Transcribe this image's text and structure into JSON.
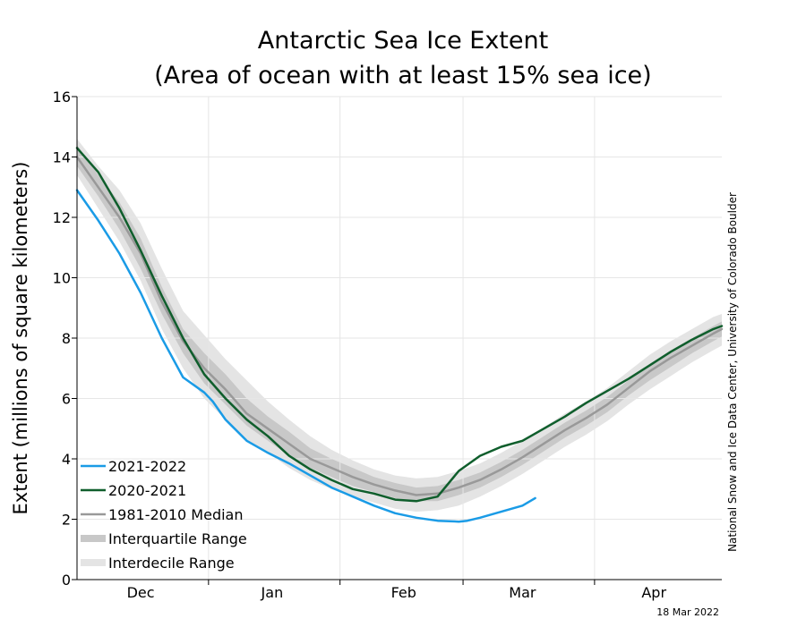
{
  "chart_data": {
    "type": "line",
    "title": "Antarctic Sea Ice Extent",
    "subtitle": "(Area of ocean with at least 15% sea ice)",
    "xlabel": "",
    "ylabel": "Extent (millions of square kilometers)",
    "xlim": [
      0,
      152
    ],
    "ylim": [
      0,
      16
    ],
    "yticks": [
      0,
      2,
      4,
      6,
      8,
      10,
      12,
      14,
      16
    ],
    "xticks": [
      {
        "label": "Dec",
        "pos": 15
      },
      {
        "label": "Jan",
        "pos": 46
      },
      {
        "label": "Feb",
        "pos": 77
      },
      {
        "label": "Mar",
        "pos": 105
      },
      {
        "label": "Apr",
        "pos": 136
      }
    ],
    "month_boundaries": [
      31,
      62,
      91,
      122
    ],
    "grid": true,
    "x_unit": "days since Nov 1",
    "series": [
      {
        "name": "2021-2022",
        "color": "#1a9be6",
        "x": [
          0,
          5,
          10,
          15,
          20,
          25,
          30,
          32,
          35,
          40,
          45,
          50,
          55,
          60,
          65,
          70,
          75,
          80,
          85,
          90,
          92,
          95,
          100,
          105,
          108
        ],
        "values": [
          12.9,
          11.9,
          10.8,
          9.5,
          8.0,
          6.7,
          6.2,
          5.9,
          5.3,
          4.6,
          4.2,
          3.85,
          3.45,
          3.05,
          2.75,
          2.45,
          2.2,
          2.05,
          1.95,
          1.92,
          1.95,
          2.05,
          2.25,
          2.45,
          2.7
        ]
      },
      {
        "name": "2020-2021",
        "color": "#0f5e2c",
        "x": [
          0,
          5,
          10,
          15,
          20,
          25,
          30,
          35,
          40,
          45,
          50,
          55,
          60,
          65,
          70,
          75,
          80,
          85,
          90,
          95,
          100,
          105,
          110,
          115,
          120,
          125,
          130,
          135,
          140,
          145,
          150,
          152
        ],
        "values": [
          14.3,
          13.5,
          12.3,
          10.9,
          9.4,
          8.0,
          6.8,
          6.0,
          5.3,
          4.75,
          4.1,
          3.65,
          3.3,
          3.0,
          2.85,
          2.65,
          2.6,
          2.75,
          3.6,
          4.1,
          4.4,
          4.6,
          5.0,
          5.4,
          5.85,
          6.25,
          6.65,
          7.1,
          7.55,
          7.95,
          8.3,
          8.4
        ]
      },
      {
        "name": "1981-2010 Median",
        "color": "#999999",
        "x": [
          0,
          5,
          10,
          15,
          20,
          25,
          30,
          35,
          40,
          45,
          50,
          55,
          60,
          65,
          70,
          75,
          80,
          85,
          90,
          95,
          100,
          105,
          110,
          115,
          120,
          125,
          130,
          135,
          140,
          145,
          150,
          152
        ],
        "values": [
          14.0,
          13.0,
          12.0,
          10.8,
          9.2,
          7.9,
          7.0,
          6.3,
          5.5,
          5.0,
          4.5,
          4.0,
          3.7,
          3.4,
          3.15,
          2.95,
          2.8,
          2.85,
          3.05,
          3.3,
          3.65,
          4.05,
          4.5,
          4.95,
          5.35,
          5.8,
          6.35,
          6.9,
          7.35,
          7.75,
          8.15,
          8.3
        ]
      }
    ],
    "ranges": [
      {
        "name": "Interquartile Range",
        "color": "#c8c8c8",
        "x": [
          0,
          5,
          10,
          15,
          20,
          25,
          30,
          35,
          40,
          45,
          50,
          55,
          60,
          65,
          70,
          75,
          80,
          85,
          90,
          95,
          100,
          105,
          110,
          115,
          120,
          125,
          130,
          135,
          140,
          145,
          150,
          152
        ],
        "lower": [
          13.7,
          12.7,
          11.6,
          10.3,
          8.8,
          7.5,
          6.5,
          5.8,
          5.1,
          4.6,
          4.1,
          3.7,
          3.4,
          3.1,
          2.9,
          2.7,
          2.6,
          2.6,
          2.8,
          3.05,
          3.4,
          3.8,
          4.25,
          4.7,
          5.1,
          5.55,
          6.1,
          6.6,
          7.05,
          7.5,
          7.9,
          8.05
        ],
        "upper": [
          14.4,
          13.4,
          12.5,
          11.3,
          9.7,
          8.3,
          7.5,
          6.8,
          6.0,
          5.4,
          4.9,
          4.35,
          4.0,
          3.7,
          3.4,
          3.2,
          3.05,
          3.1,
          3.3,
          3.55,
          3.9,
          4.3,
          4.75,
          5.2,
          5.6,
          6.05,
          6.6,
          7.15,
          7.6,
          8.0,
          8.4,
          8.55
        ]
      },
      {
        "name": "Interdecile Range",
        "color": "#e4e4e4",
        "x": [
          0,
          5,
          10,
          15,
          20,
          25,
          30,
          35,
          40,
          45,
          50,
          55,
          60,
          65,
          70,
          75,
          80,
          85,
          90,
          95,
          100,
          105,
          110,
          115,
          120,
          125,
          130,
          135,
          140,
          145,
          150,
          152
        ],
        "lower": [
          13.4,
          12.3,
          11.2,
          9.9,
          8.3,
          7.0,
          6.0,
          5.3,
          4.6,
          4.2,
          3.7,
          3.3,
          3.0,
          2.75,
          2.55,
          2.35,
          2.25,
          2.3,
          2.45,
          2.75,
          3.1,
          3.5,
          3.95,
          4.4,
          4.8,
          5.25,
          5.8,
          6.3,
          6.75,
          7.2,
          7.6,
          7.75
        ],
        "upper": [
          14.6,
          13.7,
          12.9,
          11.8,
          10.3,
          8.9,
          8.1,
          7.3,
          6.6,
          5.9,
          5.3,
          4.75,
          4.3,
          3.95,
          3.65,
          3.45,
          3.35,
          3.4,
          3.6,
          3.85,
          4.2,
          4.6,
          5.05,
          5.5,
          5.9,
          6.35,
          6.9,
          7.45,
          7.9,
          8.3,
          8.7,
          8.8
        ]
      }
    ],
    "legend": {
      "position": "bottom-left",
      "entries": [
        {
          "label": "2021-2022",
          "color": "#1a9be6",
          "kind": "line"
        },
        {
          "label": "2020-2021",
          "color": "#0f5e2c",
          "kind": "line"
        },
        {
          "label": "1981-2010 Median",
          "color": "#999999",
          "kind": "line"
        },
        {
          "label": "Interquartile Range",
          "color": "#c8c8c8",
          "kind": "band"
        },
        {
          "label": "Interdecile Range",
          "color": "#e4e4e4",
          "kind": "band"
        }
      ]
    },
    "credit": "National Snow and Ice Data Center, University of Colorado Boulder",
    "date_stamp": "18 Mar 2022"
  }
}
